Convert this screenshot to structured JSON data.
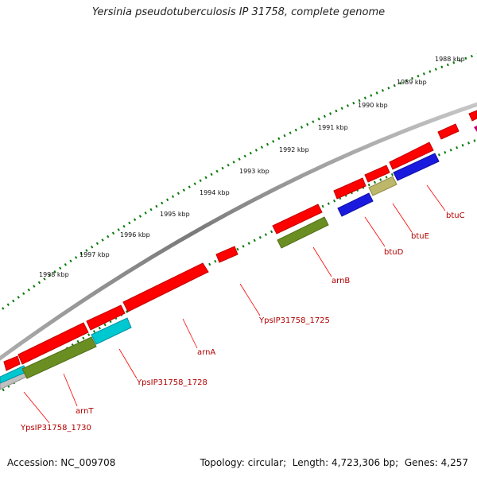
{
  "title": "Yersinia pseudotuberculosis IP 31758, complete genome",
  "footer": {
    "accession_label": "Accession:",
    "accession": "NC_009708",
    "topology_label": "Topology:",
    "topology": "circular",
    "length_label": "Length:",
    "length": "4,723,306 bp",
    "genes_label": "Genes:",
    "genes": "4,257"
  },
  "kbp_labels": [
    "1988 kbp",
    "1989 kbp",
    "1990 kbp",
    "1991 kbp",
    "1992 kbp",
    "1993 kbp",
    "1994 kbp",
    "1995 kbp",
    "1996 kbp",
    "1997 kbp",
    "1998 kbp"
  ],
  "gene_labels": [
    "btuC",
    "btuE",
    "btuD",
    "arnB",
    "YpsIP31758_1725",
    "arnA",
    "YpsIP31758_1728",
    "arnT",
    "YpsIP31758_1730"
  ],
  "colors": {
    "backbone": "#8a8a8a",
    "forward_gene": "#ff0000",
    "reverse_red": "#ff0000",
    "olive": "#6b8e23",
    "cyan": "#00c8d0",
    "blue": "#1a1adf",
    "khaki": "#bdb76b",
    "tick_green": "#0a7a0a",
    "label_red": "#b00000"
  }
}
